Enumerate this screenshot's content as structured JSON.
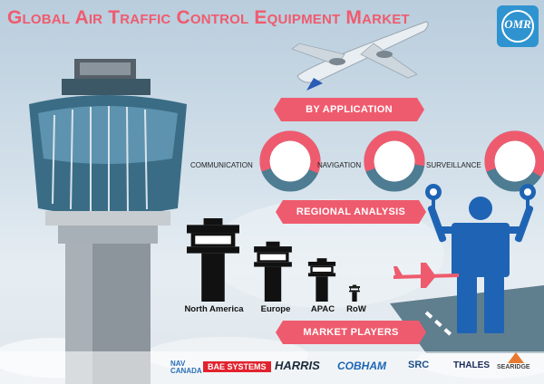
{
  "title": "Global Air Traffic Control Equipment Market",
  "brand": {
    "logo_text": "OMR",
    "accent": "#ef5b6e",
    "ring_color": "#4e7c92",
    "logo_color": "#2f93d0"
  },
  "sections": {
    "by_application": "BY APPLICATION",
    "regional_analysis": "REGIONAL ANALYSIS",
    "market_players": "MARKET PLAYERS"
  },
  "chart_data": [
    {
      "type": "pie",
      "title": "BY APPLICATION",
      "categories": [
        "COMMUNICATION",
        "NAVIGATION",
        "SURVEILLANCE"
      ],
      "values": [
        34,
        30,
        36
      ]
    },
    {
      "type": "bar",
      "title": "REGIONAL ANALYSIS",
      "categories": [
        "North America",
        "Europe",
        "APAC",
        "RoW"
      ],
      "values": [
        100,
        72,
        52,
        20
      ]
    }
  ],
  "players": [
    "NAV CANADA",
    "BAE SYSTEMS",
    "HARRIS",
    "COBHAM",
    "SRC",
    "THALES",
    "SEARIDGE"
  ]
}
